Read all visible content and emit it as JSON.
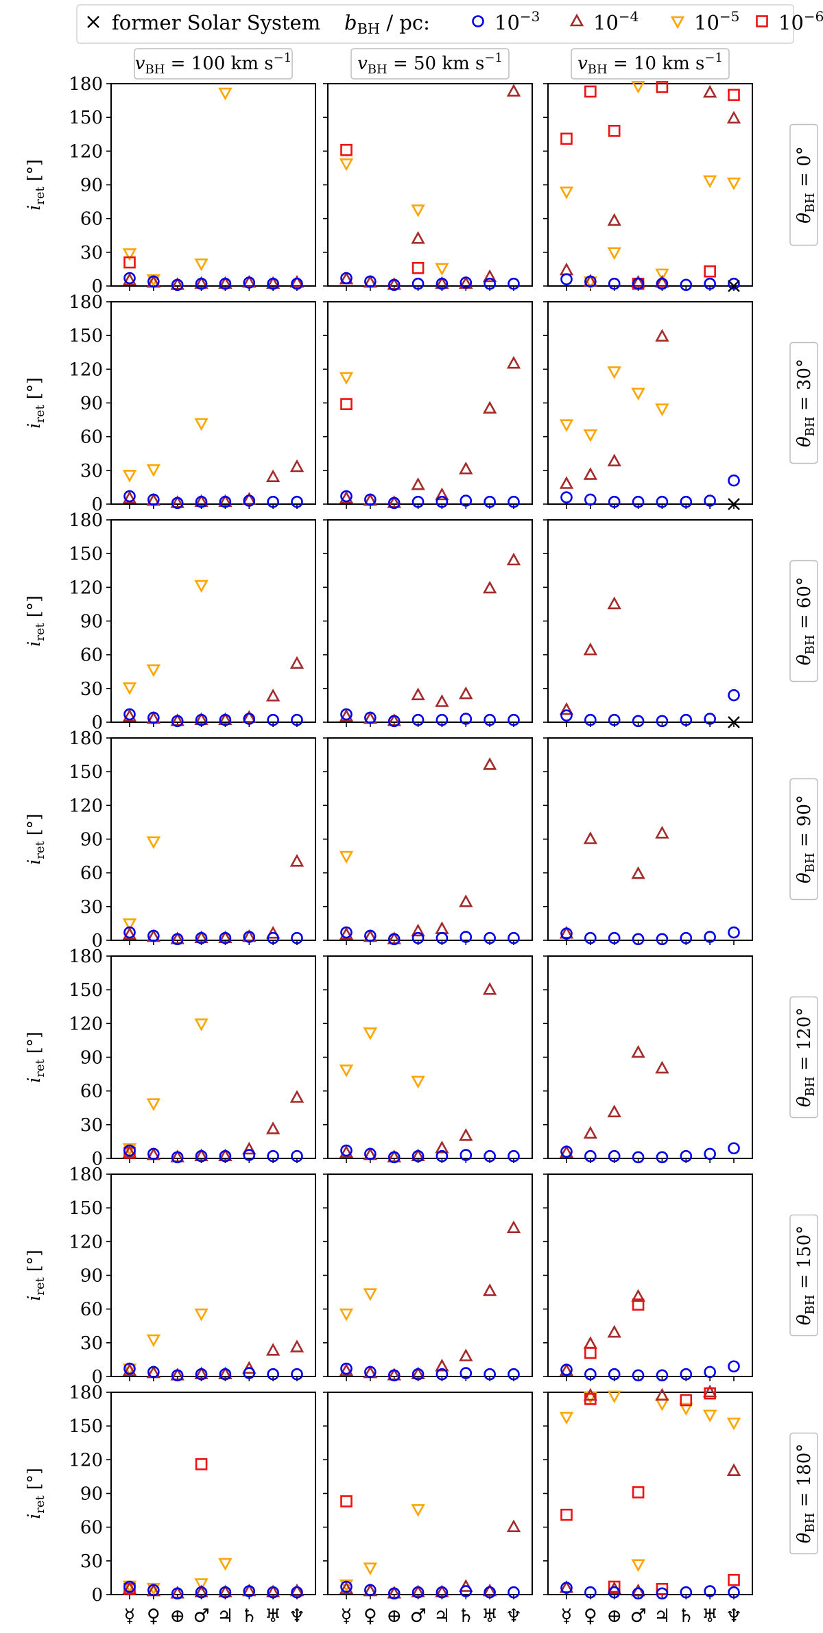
{
  "legend": {
    "former_label": "former Solar System",
    "b_label": "b",
    "b_sub": "BH",
    "b_unit": " / pc:",
    "entries": [
      {
        "key": "b1e-3",
        "marker": "circle",
        "color": "#0000ee",
        "base": "10",
        "exp": "−3"
      },
      {
        "key": "b1e-4",
        "marker": "triangle-up",
        "color": "#a52a2a",
        "base": "10",
        "exp": "−4"
      },
      {
        "key": "b1e-5",
        "marker": "triangle-down",
        "color": "#ffa500",
        "base": "10",
        "exp": "−5"
      },
      {
        "key": "b1e-6",
        "marker": "square",
        "color": "#ee1111",
        "base": "10",
        "exp": "−6"
      }
    ]
  },
  "chart_data": {
    "type": "scatter",
    "ylabel_main": "i",
    "ylabel_sub": "ret",
    "ylabel_unit": " [°]",
    "ylim": [
      0,
      180
    ],
    "yticks": [
      0,
      30,
      60,
      90,
      120,
      150,
      180
    ],
    "planets": [
      "☿",
      "♀",
      "⊕",
      "♂",
      "♃",
      "♄",
      "♅",
      "♆"
    ],
    "planet_names": [
      "Mercury",
      "Venus",
      "Earth",
      "Mars",
      "Jupiter",
      "Saturn",
      "Uranus",
      "Neptune"
    ],
    "column_labels": [
      {
        "v": "v",
        "sub": "BH",
        "rest": " = 100 km s",
        "sup": "−1"
      },
      {
        "v": "v",
        "sub": "BH",
        "rest": " = 50 km s",
        "sup": "−1"
      },
      {
        "v": "v",
        "sub": "BH",
        "rest": " = 10 km s",
        "sup": "−1"
      }
    ],
    "row_labels": [
      {
        "theta": "θ",
        "sub": "BH",
        "rest": " = 0°"
      },
      {
        "theta": "θ",
        "sub": "BH",
        "rest": " = 30°"
      },
      {
        "theta": "θ",
        "sub": "BH",
        "rest": " = 60°"
      },
      {
        "theta": "θ",
        "sub": "BH",
        "rest": " = 90°"
      },
      {
        "theta": "θ",
        "sub": "BH",
        "rest": " = 120°"
      },
      {
        "theta": "θ",
        "sub": "BH",
        "rest": " = 150°"
      },
      {
        "theta": "θ",
        "sub": "BH",
        "rest": " = 180°"
      }
    ],
    "panels": [
      [
        {
          "circle": [
            7,
            4,
            1,
            2,
            2,
            3,
            2,
            2
          ],
          "triangle-up": [
            5,
            3,
            1,
            2,
            2,
            3,
            2,
            3
          ],
          "triangle-down": [
            29,
            6,
            null,
            20,
            172,
            null,
            null,
            null
          ],
          "square": [
            21,
            null,
            null,
            null,
            null,
            null,
            null,
            null
          ],
          "former": []
        },
        {
          "circle": [
            7,
            4,
            1,
            2,
            2,
            3,
            2,
            2
          ],
          "triangle-up": [
            6,
            3,
            1,
            42,
            2,
            2,
            8,
            173
          ],
          "triangle-down": [
            109,
            null,
            null,
            68,
            16,
            null,
            null,
            null
          ],
          "square": [
            121,
            null,
            null,
            16,
            null,
            null,
            null,
            null
          ],
          "former": []
        },
        {
          "circle": [
            6,
            4,
            2,
            2,
            2,
            1,
            2,
            2
          ],
          "triangle-up": [
            14,
            4,
            58,
            3,
            3,
            null,
            172,
            149
          ],
          "triangle-down": [
            84,
            4,
            30,
            178,
            11,
            null,
            94,
            92
          ],
          "square": [
            131,
            173,
            138,
            2,
            177,
            null,
            13,
            170
          ],
          "former": [
            7
          ]
        }
      ],
      [
        {
          "circle": [
            7,
            4,
            1,
            2,
            2,
            3,
            2,
            2
          ],
          "triangle-up": [
            5,
            3,
            1,
            2,
            2,
            4,
            24,
            33
          ],
          "triangle-down": [
            26,
            31,
            null,
            72,
            null,
            null,
            null,
            null
          ],
          "square": [
            null,
            null,
            null,
            null,
            null,
            null,
            null,
            null
          ],
          "former": []
        },
        {
          "circle": [
            7,
            4,
            1,
            2,
            2,
            3,
            2,
            2
          ],
          "triangle-up": [
            5,
            3,
            1,
            17,
            8,
            31,
            85,
            125
          ],
          "triangle-down": [
            113,
            null,
            null,
            null,
            null,
            null,
            null,
            null
          ],
          "square": [
            89,
            null,
            null,
            null,
            null,
            null,
            null,
            null
          ],
          "former": []
        },
        {
          "circle": [
            6,
            4,
            2,
            2,
            2,
            2,
            3,
            21
          ],
          "triangle-up": [
            18,
            26,
            38,
            null,
            149,
            null,
            null,
            null
          ],
          "triangle-down": [
            71,
            62,
            118,
            99,
            85,
            null,
            null,
            null
          ],
          "square": [
            null,
            null,
            null,
            null,
            null,
            null,
            null,
            null
          ],
          "former": [
            7
          ]
        }
      ],
      [
        {
          "circle": [
            7,
            4,
            1,
            2,
            2,
            3,
            2,
            2
          ],
          "triangle-up": [
            5,
            3,
            1,
            2,
            2,
            4,
            23,
            52
          ],
          "triangle-down": [
            31,
            47,
            null,
            122,
            null,
            null,
            null,
            null
          ],
          "square": [
            null,
            null,
            null,
            null,
            null,
            null,
            null,
            null
          ],
          "former": []
        },
        {
          "circle": [
            7,
            4,
            1,
            2,
            2,
            3,
            2,
            2
          ],
          "triangle-up": [
            5,
            3,
            1,
            24,
            18,
            25,
            119,
            144
          ],
          "triangle-down": [
            null,
            null,
            null,
            null,
            null,
            null,
            null,
            null
          ],
          "square": [
            null,
            null,
            null,
            null,
            null,
            null,
            null,
            null
          ],
          "former": []
        },
        {
          "circle": [
            6,
            2,
            2,
            1,
            1,
            2,
            3,
            24
          ],
          "triangle-up": [
            11,
            64,
            105,
            null,
            null,
            null,
            null,
            null
          ],
          "triangle-down": [
            null,
            null,
            null,
            null,
            null,
            null,
            null,
            null
          ],
          "square": [
            null,
            null,
            null,
            null,
            null,
            null,
            null,
            null
          ],
          "former": [
            7
          ]
        }
      ],
      [
        {
          "circle": [
            7,
            4,
            1,
            2,
            2,
            3,
            2,
            2
          ],
          "triangle-up": [
            5,
            3,
            1,
            2,
            2,
            3,
            6,
            70
          ],
          "triangle-down": [
            15,
            88,
            null,
            null,
            null,
            null,
            null,
            null
          ],
          "square": [
            null,
            null,
            null,
            null,
            null,
            null,
            null,
            null
          ],
          "former": []
        },
        {
          "circle": [
            7,
            4,
            1,
            2,
            2,
            3,
            2,
            2
          ],
          "triangle-up": [
            5,
            3,
            1,
            8,
            10,
            34,
            156,
            null
          ],
          "triangle-down": [
            75,
            null,
            null,
            null,
            null,
            null,
            null,
            null
          ],
          "square": [
            null,
            null,
            null,
            null,
            null,
            null,
            null,
            null
          ],
          "former": []
        },
        {
          "circle": [
            6,
            2,
            2,
            1,
            1,
            2,
            3,
            7
          ],
          "triangle-up": [
            6,
            90,
            null,
            59,
            95,
            null,
            null,
            null
          ],
          "triangle-down": [
            null,
            null,
            null,
            null,
            null,
            null,
            null,
            null
          ],
          "square": [
            null,
            null,
            null,
            null,
            null,
            null,
            null,
            null
          ],
          "former": []
        }
      ],
      [
        {
          "circle": [
            7,
            4,
            1,
            2,
            2,
            3,
            2,
            2
          ],
          "triangle-up": [
            5,
            3,
            1,
            2,
            2,
            8,
            26,
            54
          ],
          "triangle-down": [
            9,
            49,
            null,
            120,
            null,
            null,
            null,
            null
          ],
          "square": [
            5,
            null,
            null,
            null,
            null,
            null,
            null,
            null
          ],
          "former": []
        },
        {
          "circle": [
            7,
            4,
            1,
            2,
            2,
            3,
            2,
            2
          ],
          "triangle-up": [
            5,
            3,
            1,
            2,
            9,
            20,
            150,
            null
          ],
          "triangle-down": [
            79,
            112,
            null,
            69,
            null,
            null,
            null,
            null
          ],
          "square": [
            null,
            null,
            null,
            null,
            null,
            null,
            null,
            null
          ],
          "former": []
        },
        {
          "circle": [
            6,
            2,
            2,
            1,
            1,
            2,
            4,
            9
          ],
          "triangle-up": [
            5,
            22,
            41,
            94,
            80,
            null,
            null,
            null
          ],
          "triangle-down": [
            null,
            null,
            null,
            null,
            null,
            null,
            null,
            null
          ],
          "square": [
            null,
            null,
            null,
            null,
            null,
            null,
            null,
            null
          ],
          "former": []
        }
      ],
      [
        {
          "circle": [
            7,
            4,
            1,
            2,
            2,
            3,
            2,
            2
          ],
          "triangle-up": [
            5,
            3,
            1,
            2,
            2,
            7,
            23,
            26
          ],
          "triangle-down": [
            7,
            33,
            null,
            56,
            null,
            null,
            null,
            null
          ],
          "square": [
            null,
            null,
            null,
            null,
            null,
            null,
            null,
            null
          ],
          "former": []
        },
        {
          "circle": [
            7,
            4,
            1,
            2,
            2,
            3,
            2,
            2
          ],
          "triangle-up": [
            5,
            3,
            1,
            2,
            9,
            18,
            76,
            132
          ],
          "triangle-down": [
            56,
            74,
            null,
            null,
            null,
            null,
            null,
            null
          ],
          "square": [
            null,
            null,
            null,
            null,
            null,
            null,
            null,
            null
          ],
          "former": []
        },
        {
          "circle": [
            6,
            2,
            2,
            1,
            1,
            2,
            4,
            9
          ],
          "triangle-up": [
            5,
            29,
            39,
            71,
            null,
            null,
            null,
            null
          ],
          "triangle-down": [
            null,
            null,
            null,
            null,
            null,
            null,
            null,
            null
          ],
          "square": [
            null,
            21,
            null,
            64,
            null,
            null,
            null,
            null
          ],
          "former": []
        }
      ],
      [
        {
          "circle": [
            7,
            4,
            1,
            2,
            2,
            3,
            2,
            2
          ],
          "triangle-up": [
            5,
            3,
            1,
            2,
            2,
            3,
            2,
            3
          ],
          "triangle-down": [
            8,
            6,
            null,
            10,
            28,
            null,
            null,
            null
          ],
          "square": [
            5,
            null,
            null,
            116,
            null,
            null,
            null,
            null
          ],
          "former": []
        },
        {
          "circle": [
            7,
            4,
            1,
            2,
            2,
            3,
            2,
            2
          ],
          "triangle-up": [
            5,
            3,
            1,
            2,
            2,
            7,
            3,
            60
          ],
          "triangle-down": [
            9,
            24,
            null,
            76,
            null,
            null,
            null,
            null
          ],
          "square": [
            83,
            null,
            null,
            null,
            null,
            null,
            null,
            null
          ],
          "former": []
        },
        {
          "circle": [
            6,
            2,
            2,
            1,
            1,
            2,
            3,
            2
          ],
          "triangle-up": [
            6,
            177,
            5,
            3,
            177,
            null,
            180,
            110
          ],
          "triangle-down": [
            158,
            176,
            177,
            27,
            170,
            166,
            160,
            153
          ],
          "square": [
            71,
            174,
            7,
            91,
            5,
            173,
            179,
            13
          ],
          "former": []
        }
      ]
    ]
  }
}
